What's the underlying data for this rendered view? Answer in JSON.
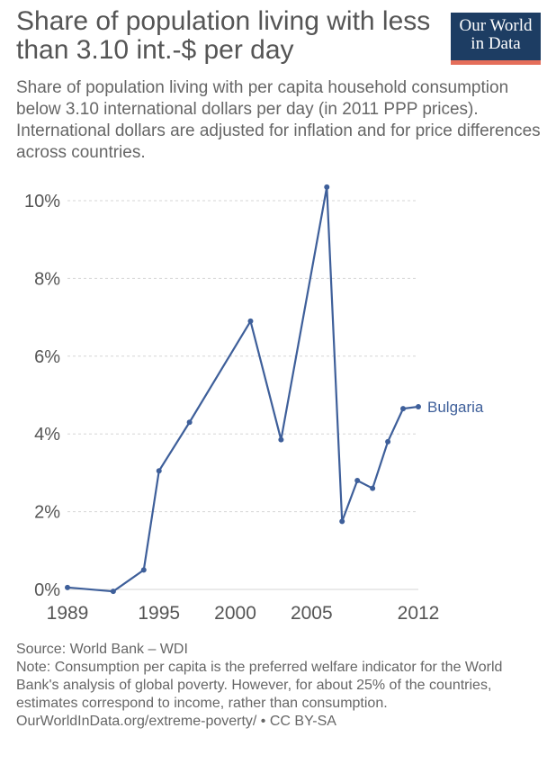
{
  "header": {
    "title": "Share of population living with less than 3.10 int.-$ per day",
    "subtitle": "Share of population living with per capita household consumption below 3.10 international dollars per day (in 2011 PPP prices). International dollars are adjusted for inflation and for price differences across countries.",
    "logo_line1": "Our World",
    "logo_line2": "in Data"
  },
  "colors": {
    "series": "#3e5f9a",
    "logo_bg": "#1d3d63",
    "logo_bar": "#e56e5a",
    "grid": "#d6d6d6",
    "text": "#555555"
  },
  "chart_data": {
    "type": "line",
    "y_tick_labels": [
      "0%",
      "2%",
      "4%",
      "6%",
      "8%",
      "10%"
    ],
    "y_ticks": [
      0,
      2,
      4,
      6,
      8,
      10
    ],
    "x_tick_labels": [
      "1989",
      "1995",
      "2000",
      "2005",
      "2012"
    ],
    "x_ticks": [
      1989,
      1995,
      2000,
      2005,
      2012
    ],
    "xlim": [
      1989,
      2012
    ],
    "ylim": [
      0,
      10
    ],
    "grid": "horizontal dashed",
    "series": [
      {
        "name": "Bulgaria",
        "x": [
          1989,
          1992,
          1994,
          1995,
          1997,
          2001,
          2003,
          2006,
          2007,
          2008,
          2009,
          2010,
          2011,
          2012
        ],
        "y": [
          0.05,
          -0.05,
          0.5,
          3.05,
          4.3,
          6.9,
          3.85,
          10.35,
          1.75,
          2.8,
          2.6,
          3.8,
          4.65,
          4.7
        ]
      }
    ]
  },
  "footer": {
    "source": "Source: World Bank – WDI",
    "note": "Note: Consumption per capita is the preferred welfare indicator for the World Bank's analysis of global poverty. However, for about 25% of the countries, estimates correspond to income, rather than consumption.",
    "link": "OurWorldInData.org/extreme-poverty/ • CC BY-SA"
  }
}
